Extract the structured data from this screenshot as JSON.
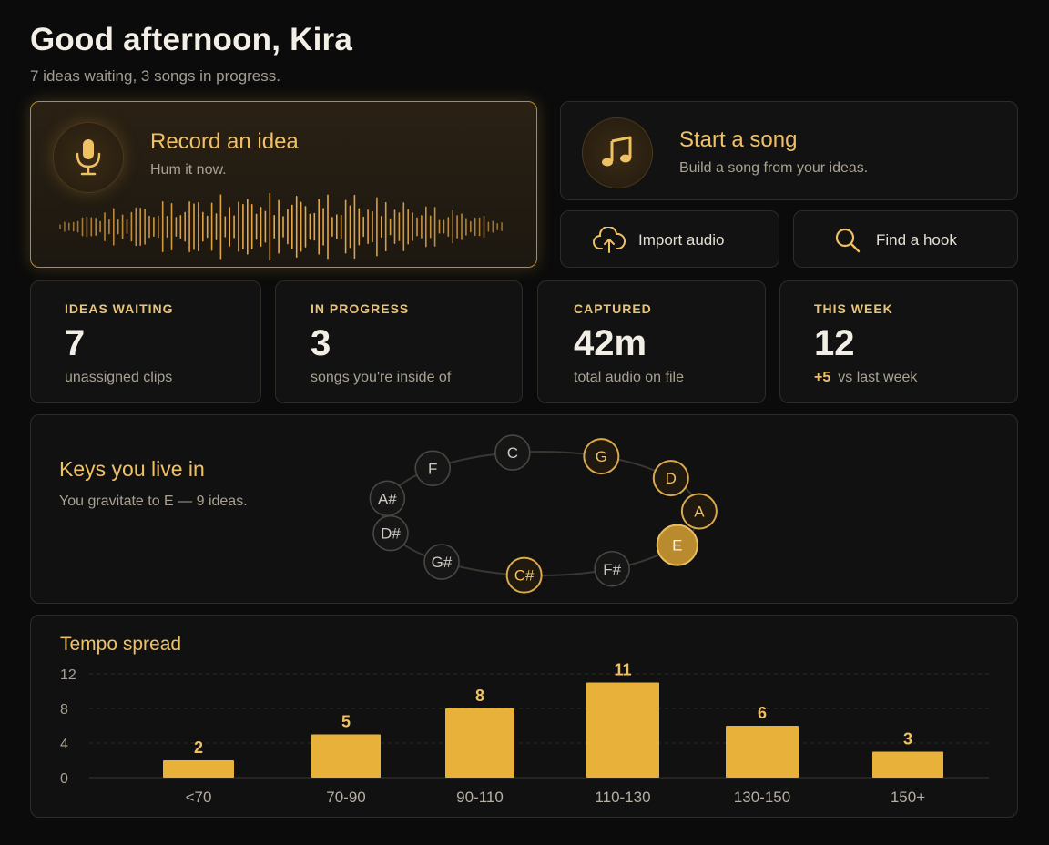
{
  "header": {
    "greeting": "Good afternoon, Kira",
    "subline": "7 ideas waiting, 3 songs in progress."
  },
  "record": {
    "title": "Record an idea",
    "subtitle": "Hum it now.",
    "icon": "mic-icon"
  },
  "start_song": {
    "title": "Start a song",
    "subtitle": "Build a song from your ideas.",
    "icon": "music-note-icon"
  },
  "actions": [
    {
      "label": "Import audio",
      "icon": "cloud-upload-icon"
    },
    {
      "label": "Find a hook",
      "icon": "search-icon"
    }
  ],
  "stats": [
    {
      "key": "IDEAS WAITING",
      "value": "7",
      "desc": "unassigned clips"
    },
    {
      "key": "IN PROGRESS",
      "value": "3",
      "desc": "songs you're inside of"
    },
    {
      "key": "CAPTURED",
      "value": "42m",
      "desc": "total audio on file"
    },
    {
      "key": "THIS WEEK",
      "value": "12",
      "delta": "+5",
      "desc": "vs last week"
    }
  ],
  "keys": {
    "title": "Keys you live in",
    "subtitle": "You gravitate to E — 9 ideas.",
    "notes": [
      {
        "name": "C",
        "level": "dim"
      },
      {
        "name": "G",
        "level": "accent"
      },
      {
        "name": "D",
        "level": "accent"
      },
      {
        "name": "A",
        "level": "accent"
      },
      {
        "name": "E",
        "level": "primary"
      },
      {
        "name": "F#",
        "level": "dim"
      },
      {
        "name": "C#",
        "level": "accent"
      },
      {
        "name": "G#",
        "level": "dim"
      },
      {
        "name": "D#",
        "level": "dim"
      },
      {
        "name": "A#",
        "level": "dim"
      },
      {
        "name": "F",
        "level": "dim"
      }
    ]
  },
  "chart_data": {
    "type": "bar",
    "title": "Tempo spread",
    "categories": [
      "<70",
      "70-90",
      "90-110",
      "110-130",
      "130-150",
      "150+"
    ],
    "values": [
      2,
      5,
      8,
      11,
      6,
      3
    ],
    "yticks": [
      "0",
      "4",
      "8",
      "12"
    ],
    "ylim": [
      0,
      12
    ],
    "grid": true,
    "color": "#e8b23a"
  },
  "colors": {
    "accent": "#f0c064",
    "bar": "#e8b23a",
    "background": "#0b0b0b"
  }
}
